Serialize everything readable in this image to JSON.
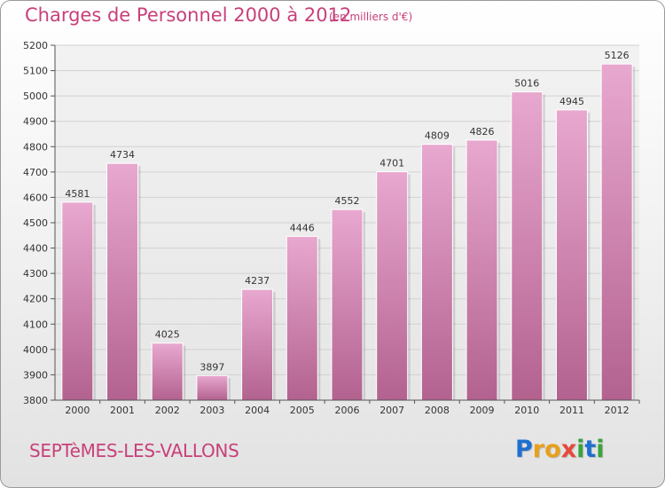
{
  "header": {
    "title": "Charges de Personnel 2000 à 2012",
    "subtitle": "(en milliers d'€)"
  },
  "footer": {
    "commune": "SEPTèMES-LES-VALLONS",
    "logo_letters": [
      {
        "char": "P",
        "color": "#1f6fd0"
      },
      {
        "char": "r",
        "color": "#e8a01a"
      },
      {
        "char": "o",
        "color": "#e8a01a"
      },
      {
        "char": "x",
        "color": "#e64a3a"
      },
      {
        "char": "i",
        "color": "#3aa33a"
      },
      {
        "char": "t",
        "color": "#1f6fd0"
      },
      {
        "char": "i",
        "color": "#3aa33a"
      }
    ]
  },
  "colors": {
    "accent": "#c8407a",
    "bar_top": "#e8a8cf",
    "bar_bottom": "#b3628f",
    "grid": "#d2d2d2"
  },
  "chart_data": {
    "type": "bar",
    "title": "Charges de Personnel 2000 à 2012",
    "subtitle": "(en milliers d'€)",
    "xlabel": "",
    "ylabel": "",
    "categories": [
      "2000",
      "2001",
      "2002",
      "2003",
      "2004",
      "2005",
      "2006",
      "2007",
      "2008",
      "2009",
      "2010",
      "2011",
      "2012"
    ],
    "values": [
      4581,
      4734,
      4025,
      3897,
      4237,
      4446,
      4552,
      4701,
      4809,
      4826,
      5016,
      4945,
      5126
    ],
    "ylim": [
      3800,
      5200
    ],
    "yticks": [
      3800,
      3900,
      4000,
      4100,
      4200,
      4300,
      4400,
      4500,
      4600,
      4700,
      4800,
      4900,
      5000,
      5100,
      5200
    ],
    "grid": true,
    "data_labels": true
  }
}
